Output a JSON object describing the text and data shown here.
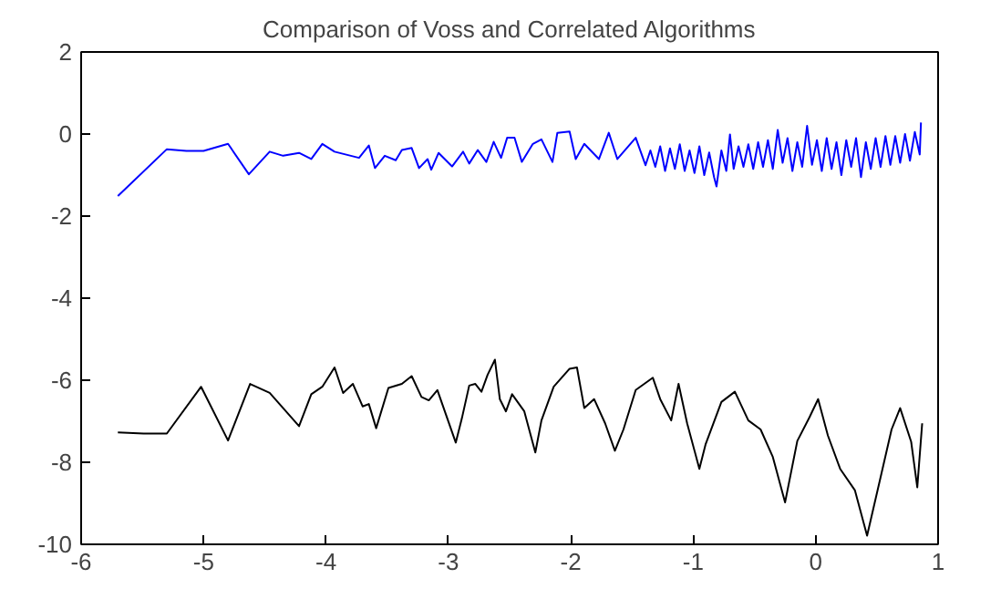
{
  "chart_data": {
    "type": "line",
    "title": "Comparison of Voss and Correlated Algorithms",
    "xlim": [
      -6,
      1
    ],
    "ylim": [
      -10,
      2
    ],
    "xticks": [
      -6,
      -5,
      -4,
      -3,
      -2,
      -1,
      0,
      1
    ],
    "yticks": [
      -10,
      -8,
      -6,
      -4,
      -2,
      0,
      2
    ],
    "grid": false,
    "line_style": "solid",
    "marker": "none",
    "series": [
      {
        "color": "#0000ff",
        "x": [
          -5.7,
          -5.3,
          -5.14,
          -5.0,
          -4.8,
          -4.63,
          -4.46,
          -4.35,
          -4.22,
          -4.12,
          -4.03,
          -3.93,
          -3.73,
          -3.65,
          -3.6,
          -3.52,
          -3.43,
          -3.38,
          -3.3,
          -3.24,
          -3.17,
          -3.14,
          -3.08,
          -2.97,
          -2.88,
          -2.83,
          -2.76,
          -2.69,
          -2.63,
          -2.57,
          -2.52,
          -2.46,
          -2.4,
          -2.31,
          -2.24,
          -2.15,
          -2.11,
          -2.01,
          -1.96,
          -1.89,
          -1.77,
          -1.69,
          -1.62,
          -1.47,
          -1.39,
          -1.35,
          -1.31,
          -1.27,
          -1.23,
          -1.19,
          -1.15,
          -1.11,
          -1.07,
          -1.03,
          -0.99,
          -0.95,
          -0.91,
          -0.87,
          -0.83,
          -0.81,
          -0.77,
          -0.73,
          -0.7,
          -0.67,
          -0.63,
          -0.59,
          -0.55,
          -0.51,
          -0.47,
          -0.43,
          -0.39,
          -0.35,
          -0.31,
          -0.27,
          -0.23,
          -0.19,
          -0.15,
          -0.11,
          -0.07,
          -0.03,
          0.01,
          0.05,
          0.09,
          0.13,
          0.17,
          0.21,
          0.25,
          0.29,
          0.33,
          0.37,
          0.41,
          0.45,
          0.49,
          0.53,
          0.57,
          0.61,
          0.65,
          0.69,
          0.73,
          0.77,
          0.81,
          0.85,
          0.86
        ],
        "values": [
          -1.51,
          -0.37,
          -0.41,
          -0.41,
          -0.24,
          -0.98,
          -0.43,
          -0.53,
          -0.46,
          -0.61,
          -0.24,
          -0.43,
          -0.58,
          -0.28,
          -0.83,
          -0.53,
          -0.64,
          -0.39,
          -0.34,
          -0.83,
          -0.61,
          -0.87,
          -0.46,
          -0.79,
          -0.43,
          -0.72,
          -0.39,
          -0.68,
          -0.19,
          -0.58,
          -0.09,
          -0.09,
          -0.68,
          -0.24,
          -0.13,
          -0.68,
          0.03,
          0.06,
          -0.61,
          -0.24,
          -0.61,
          0.03,
          -0.61,
          -0.09,
          -0.76,
          -0.4,
          -0.8,
          -0.3,
          -0.9,
          -0.35,
          -0.85,
          -0.25,
          -0.9,
          -0.4,
          -0.95,
          -0.3,
          -1.0,
          -0.45,
          -1.05,
          -1.28,
          -0.4,
          -0.9,
          -0.01,
          -0.85,
          -0.3,
          -0.8,
          -0.25,
          -0.85,
          -0.2,
          -0.8,
          -0.15,
          -0.85,
          0.1,
          -0.7,
          -0.1,
          -0.9,
          -0.2,
          -0.8,
          0.2,
          -0.75,
          -0.15,
          -0.9,
          -0.1,
          -0.85,
          -0.2,
          -1.0,
          -0.15,
          -0.8,
          -0.1,
          -1.05,
          -0.2,
          -0.85,
          -0.1,
          -0.8,
          -0.05,
          -0.75,
          -0.05,
          -0.7,
          0.0,
          -0.65,
          0.05,
          -0.5,
          0.28
        ]
      },
      {
        "color": "#000000",
        "x": [
          -5.7,
          -5.49,
          -5.3,
          -5.02,
          -4.8,
          -4.62,
          -4.46,
          -4.22,
          -4.12,
          -4.03,
          -3.93,
          -3.86,
          -3.78,
          -3.7,
          -3.65,
          -3.59,
          -3.49,
          -3.38,
          -3.3,
          -3.22,
          -3.16,
          -3.09,
          -2.94,
          -2.89,
          -2.83,
          -2.78,
          -2.73,
          -2.68,
          -2.62,
          -2.58,
          -2.53,
          -2.48,
          -2.38,
          -2.29,
          -2.24,
          -2.14,
          -2.01,
          -1.95,
          -1.89,
          -1.81,
          -1.72,
          -1.64,
          -1.57,
          -1.47,
          -1.33,
          -1.27,
          -1.18,
          -1.12,
          -1.05,
          -0.95,
          -0.9,
          -0.77,
          -0.66,
          -0.55,
          -0.45,
          -0.35,
          -0.25,
          -0.15,
          -0.05,
          0.02,
          0.1,
          0.2,
          0.32,
          0.42,
          0.54,
          0.62,
          0.69,
          0.78,
          0.83,
          0.87
        ],
        "values": [
          -7.27,
          -7.3,
          -7.3,
          -6.16,
          -7.47,
          -6.09,
          -6.31,
          -7.12,
          -6.34,
          -6.16,
          -5.69,
          -6.31,
          -6.09,
          -6.64,
          -6.58,
          -7.17,
          -6.19,
          -6.09,
          -5.9,
          -6.41,
          -6.49,
          -6.24,
          -7.52,
          -6.93,
          -6.13,
          -6.09,
          -6.28,
          -5.87,
          -5.5,
          -6.46,
          -6.76,
          -6.34,
          -6.76,
          -7.76,
          -6.98,
          -6.16,
          -5.72,
          -5.69,
          -6.68,
          -6.46,
          -7.05,
          -7.72,
          -7.2,
          -6.24,
          -5.94,
          -6.46,
          -6.98,
          -6.09,
          -7.05,
          -8.16,
          -7.57,
          -6.53,
          -6.28,
          -6.98,
          -7.2,
          -7.87,
          -8.98,
          -7.48,
          -6.9,
          -6.46,
          -7.35,
          -8.16,
          -8.68,
          -9.79,
          -8.24,
          -7.2,
          -6.68,
          -7.5,
          -8.61,
          -7.05
        ]
      }
    ]
  }
}
